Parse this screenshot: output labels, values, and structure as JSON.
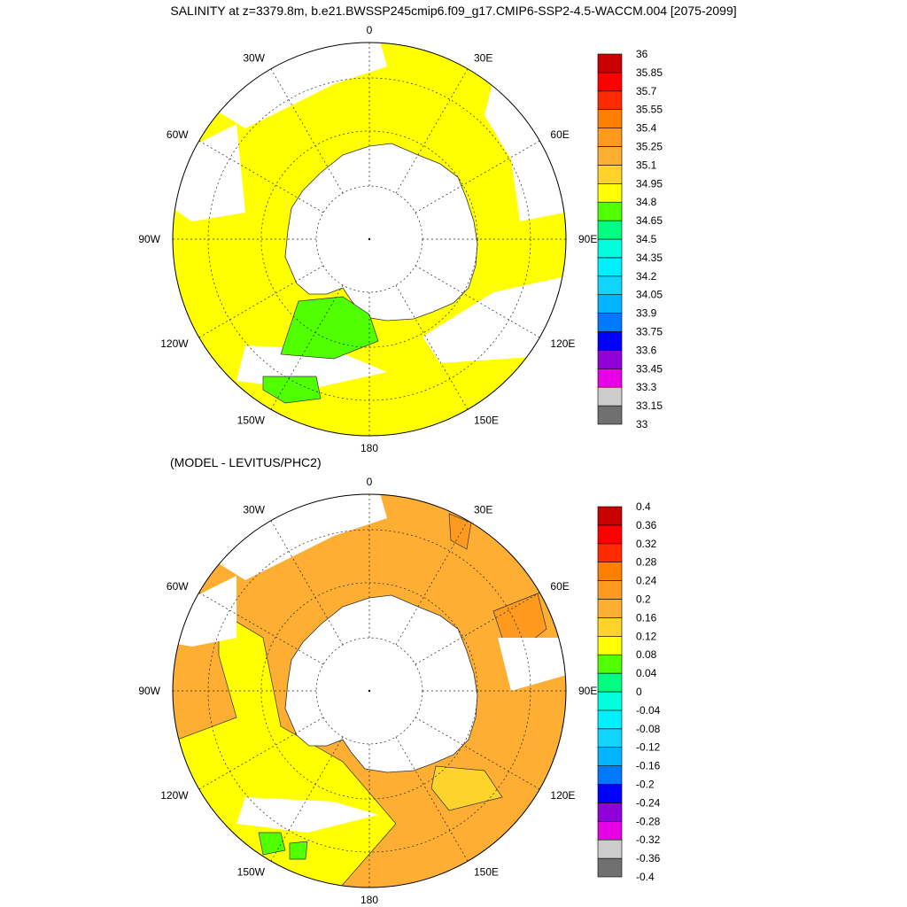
{
  "title": "SALINITY at z=3379.8m, b.e21.BWSSP245cmip6.f09_g17.CMIP6-SSP2-4.5-WACCM.004 [2075-2099]",
  "subtitle": "(MODEL - LEVITUS/PHC2)",
  "lon_labels": [
    "0",
    "30E",
    "60E",
    "90E",
    "120E",
    "150E",
    "180",
    "150W",
    "120W",
    "90W",
    "60W",
    "30W"
  ],
  "panels": [
    {
      "name": "model-salinity",
      "colorbar_levels": [
        "33",
        "33.15",
        "33.3",
        "33.45",
        "33.6",
        "33.75",
        "33.9",
        "34.05",
        "34.2",
        "34.35",
        "34.5",
        "34.65",
        "34.8",
        "34.95",
        "35.1",
        "35.25",
        "35.4",
        "35.55",
        "35.7",
        "35.85",
        "36"
      ],
      "fill_colors": {
        "ocean": "#ffff00",
        "positive_anomaly": "#ffff00",
        "green": "#50ff00"
      }
    },
    {
      "name": "difference",
      "colorbar_levels": [
        "-0.4",
        "-0.36",
        "-0.32",
        "-0.28",
        "-0.24",
        "-0.2",
        "-0.16",
        "-0.12",
        "-0.08",
        "-0.04",
        "0",
        "0.04",
        "0.08",
        "0.12",
        "0.16",
        "0.2",
        "0.24",
        "0.28",
        "0.32",
        "0.36",
        "0.4"
      ],
      "fill_colors": {
        "ocean": "#fdae33",
        "near_zero": "#ffff00",
        "high": "#ff9a1f",
        "green": "#50ff00",
        "mid": "#ffd42a"
      }
    }
  ],
  "colorbar_colors": [
    "#707070",
    "#cccccc",
    "#e600e6",
    "#9000d8",
    "#0000ff",
    "#0078ff",
    "#00b4ff",
    "#10d6ff",
    "#00f0ff",
    "#00ffdc",
    "#00ff80",
    "#50ff00",
    "#ffff00",
    "#ffd42a",
    "#fdae33",
    "#ff9a1f",
    "#ff8000",
    "#ff2a00",
    "#ff0000",
    "#c80000"
  ]
}
